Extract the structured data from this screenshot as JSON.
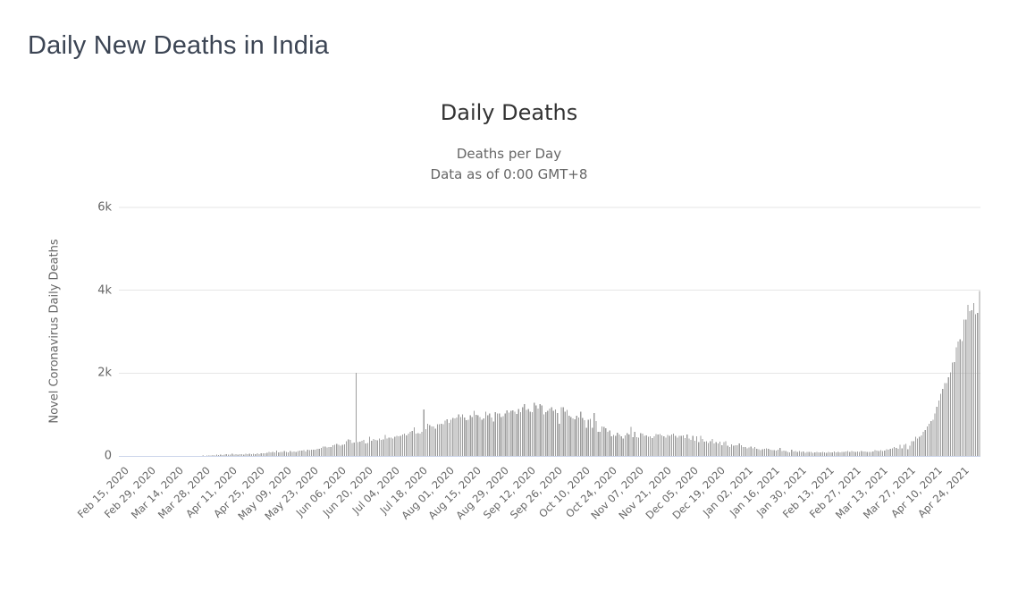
{
  "page": {
    "title": "Daily New Deaths in India"
  },
  "chart": {
    "title": "Daily Deaths",
    "subtitle_line1": "Deaths per Day",
    "subtitle_line2": "Data as of 0:00 GMT+8",
    "y_axis_title": "Novel Coronavirus Daily Deaths"
  },
  "chart_data": {
    "type": "bar",
    "title": "Daily Deaths",
    "subtitle": "Deaths per Day — Data as of 0:00 GMT+8",
    "xlabel": "",
    "ylabel": "Novel Coronavirus Daily Deaths",
    "grid": true,
    "legend": false,
    "ylim": [
      0,
      6000
    ],
    "y_ticks": [
      {
        "value": 0,
        "label": "0"
      },
      {
        "value": 2000,
        "label": "2k"
      },
      {
        "value": 4000,
        "label": "4k"
      },
      {
        "value": 6000,
        "label": "6k"
      }
    ],
    "start_date": "Feb 15, 2020",
    "end_date": "May 4, 2021",
    "x_tick_interval_days": 14,
    "x_tick_labels": [
      "Feb 15, 2020",
      "Feb 29, 2020",
      "Mar 14, 2020",
      "Mar 28, 2020",
      "Apr 11, 2020",
      "Apr 25, 2020",
      "May 09, 2020",
      "May 23, 2020",
      "Jun 06, 2020",
      "Jun 20, 2020",
      "Jul 04, 2020",
      "Jul 18, 2020",
      "Aug 01, 2020",
      "Aug 15, 2020",
      "Aug 29, 2020",
      "Sep 12, 2020",
      "Sep 26, 2020",
      "Oct 10, 2020",
      "Oct 24, 2020",
      "Nov 07, 2020",
      "Nov 21, 2020",
      "Dec 05, 2020",
      "Dec 19, 2020",
      "Jan 02, 2021",
      "Jan 16, 2021",
      "Jan 30, 2021",
      "Feb 13, 2021",
      "Feb 27, 2021",
      "Mar 13, 2021",
      "Mar 27, 2021",
      "Apr 10, 2021",
      "Apr 24, 2021"
    ],
    "colors": {
      "bar": "#9d9d9d",
      "gridline": "#e6e6e6",
      "axis_line": "#ccd6eb",
      "title_text": "#333333",
      "muted_text": "#666666",
      "heading_text": "#3c4554"
    },
    "series": [
      {
        "name": "Daily Deaths",
        "values": [
          0,
          0,
          0,
          0,
          0,
          0,
          0,
          0,
          0,
          0,
          0,
          0,
          0,
          0,
          0,
          0,
          0,
          0,
          0,
          0,
          0,
          0,
          0,
          0,
          0,
          0,
          1,
          0,
          1,
          0,
          0,
          1,
          0,
          1,
          1,
          1,
          2,
          3,
          1,
          1,
          4,
          1,
          5,
          8,
          3,
          7,
          16,
          12,
          20,
          12,
          30,
          22,
          35,
          25,
          34,
          40,
          35,
          34,
          51,
          29,
          38,
          28,
          39,
          43,
          31,
          54,
          44,
          49,
          38,
          57,
          48,
          60,
          48,
          70,
          68,
          66,
          77,
          92,
          83,
          95,
          87,
          126,
          89,
          97,
          95,
          114,
          97,
          87,
          120,
          100,
          103,
          100,
          120,
          131,
          132,
          140,
          112,
          148,
          136,
          147,
          154,
          146,
          170,
          175,
          193,
          222,
          230,
          204,
          217,
          217,
          260,
          273,
          287,
          271,
          246,
          266,
          279,
          357,
          396,
          386,
          311,
          325,
          2003,
          336,
          341,
          364,
          384,
          306,
          312,
          465,
          365,
          407,
          384,
          380,
          418,
          384,
          400,
          507,
          421,
          444,
          442,
          425,
          467,
          482,
          475,
          487,
          519,
          543,
          500,
          540,
          587,
          606,
          687,
          543,
          549,
          543,
          587,
          1120,
          648,
          777,
          740,
          708,
          708,
          654,
          771,
          768,
          779,
          765,
          853,
          886,
          803,
          871,
          920,
          904,
          933,
          1007,
          944,
          1002,
          933,
          861,
          871,
          987,
          942,
          1092,
          996,
          980,
          941,
          876,
          909,
          1065,
          983,
          1021,
          924,
          836,
          1059,
          1023,
          1021,
          941,
          961,
          1025,
          1100,
          1045,
          1089,
          1096,
          1069,
          1012,
          1133,
          1054,
          1172,
          1247,
          1114,
          1136,
          1065,
          1054,
          1283,
          1221,
          1139,
          1247,
          1223,
          1003,
          1056,
          1085,
          1141,
          1181,
          1093,
          1124,
          1039,
          776,
          1181,
          1179,
          1069,
          1113,
          975,
          940,
          903,
          884,
          972,
          926,
          1066,
          918,
          858,
          680,
          871,
          895,
          680,
          1032,
          837,
          578,
          579,
          717,
          703,
          670,
          587,
          610,
          480,
          508,
          490,
          563,
          517,
          474,
          425,
          496,
          554,
          517,
          704,
          448,
          580,
          448,
          447,
          549,
          540,
          484,
          492,
          462,
          479,
          435,
          480,
          525,
          517,
          524,
          492,
          470,
          445,
          509,
          481,
          518,
          541,
          485,
          443,
          482,
          481,
          500,
          435,
          514,
          424,
          391,
          483,
          365,
          474,
          338,
          485,
          408,
          347,
          354,
          313,
          356,
          411,
          306,
          337,
          301,
          347,
          264,
          338,
          354,
          251,
          211,
          278,
          248,
          261,
          256,
          299,
          256,
          211,
          217,
          181,
          201,
          231,
          183,
          211,
          175,
          166,
          144,
          161,
          172,
          188,
          175,
          151,
          137,
          145,
          131,
          152,
          192,
          123,
          131,
          116,
          96,
          91,
          154,
          107,
          123,
          95,
          118,
          94,
          107,
          78,
          98,
          92,
          98,
          78,
          84,
          93,
          82,
          85,
          94,
          87,
          77,
          100,
          89,
          84,
          106,
          87,
          98,
          84,
          97,
          99,
          108,
          121,
          98,
          118,
          113,
          100,
          107,
          99,
          116,
          108,
          112,
          96,
          92,
          100,
          110,
          140,
          126,
          117,
          142,
          124,
          131,
          160,
          155,
          172,
          188,
          212,
          197,
          174,
          271,
          183,
          275,
          291,
          159,
          251,
          354,
          354,
          469,
          417,
          464,
          501,
          580,
          624,
          714,
          780,
          839,
          879,
          1027,
          1185,
          1341,
          1501,
          1620,
          1761,
          1757,
          1896,
          2021,
          2256,
          2267,
          2624,
          2767,
          2812,
          2771,
          3286,
          3293,
          3645,
          3498,
          3523,
          3689,
          3421,
          3449,
          3980
        ]
      }
    ]
  }
}
